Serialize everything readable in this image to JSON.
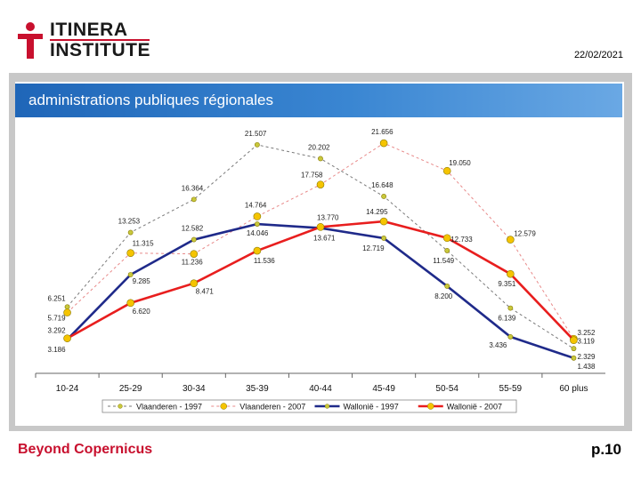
{
  "header": {
    "logo_line1": "ITINERA",
    "logo_line2": "INSTITUTE",
    "date": "22/02/2021",
    "brand_color": "#c8102e"
  },
  "banner": {
    "title": "administrations publiques régionales",
    "color": "#2a76c6"
  },
  "footer": {
    "left": "Beyond Copernicus",
    "right": "p.10"
  },
  "chart_data": {
    "type": "line",
    "title": "",
    "xlabel": "",
    "ylabel": "",
    "categories": [
      "10-24",
      "25-29",
      "30-34",
      "35-39",
      "40-44",
      "45-49",
      "50-54",
      "55-59",
      "60 plus"
    ],
    "ylim": [
      0,
      23000
    ],
    "grid": false,
    "legend_position": "bottom",
    "series": [
      {
        "name": "Vlaanderen - 1997",
        "color": "#7a7a7a",
        "style": "dashed",
        "marker": "#c8c83c",
        "values": [
          6251,
          13253,
          16364,
          21507,
          20202,
          16648,
          11549,
          6139,
          2329
        ],
        "labels": [
          "6.251",
          "13.253",
          "16.364",
          "21.507",
          "20.202",
          "16.648",
          "11.549",
          "6.139",
          "2.329"
        ]
      },
      {
        "name": "Vlaanderen - 2007",
        "color": "#e88a8a",
        "style": "dashed",
        "marker": "#f5c400",
        "values": [
          5719,
          11315,
          11236,
          14764,
          17758,
          21656,
          19050,
          12579,
          3252
        ],
        "labels": [
          "5.719",
          "11.315",
          "11.236",
          "14.764",
          "17.758",
          "21.656",
          "19.050",
          "12.579",
          "3.252"
        ]
      },
      {
        "name": "Wallonië - 1997",
        "color": "#1f2a8a",
        "style": "solid",
        "marker": "#c8c83c",
        "values": [
          3186,
          9285,
          12582,
          14046,
          13671,
          12719,
          8200,
          3436,
          1438
        ],
        "labels": [
          "3.186",
          "9.285",
          "12.582",
          "14.046",
          "13.671",
          "12.719",
          "8.200",
          "3.436",
          "1.438"
        ]
      },
      {
        "name": "Wallonië - 2007",
        "color": "#e81e1e",
        "style": "solid",
        "marker": "#f5c400",
        "values": [
          3292,
          6620,
          8471,
          11536,
          13770,
          14295,
          12733,
          9351,
          3119
        ],
        "labels": [
          "3.292",
          "6.620",
          "8.471",
          "11.536",
          "13.770",
          "14.295",
          "12.733",
          "9.351",
          "3.119"
        ]
      }
    ]
  }
}
